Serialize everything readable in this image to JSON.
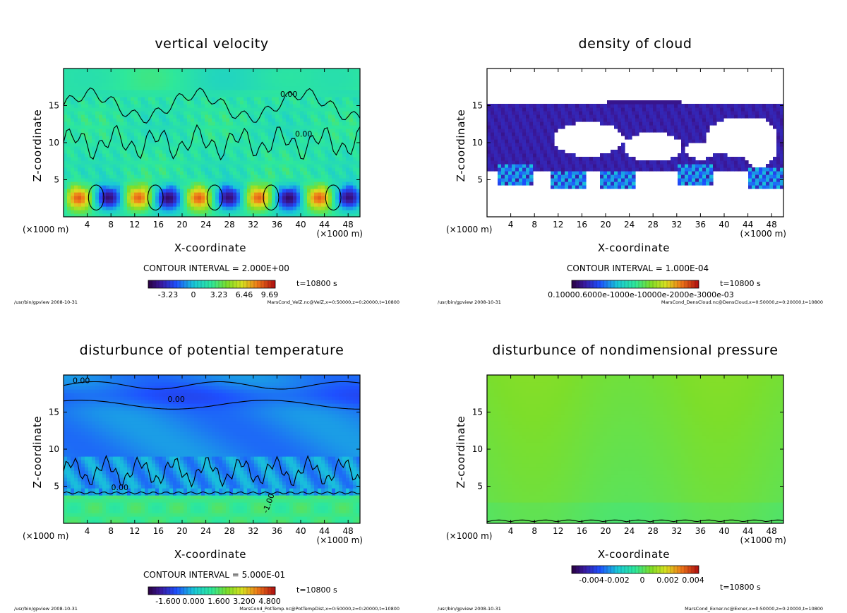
{
  "chart_data": [
    {
      "type": "heatmap",
      "title": "vertical velocity",
      "xlabel": "X-coordinate",
      "ylabel": "Z-coordinate",
      "x_unit": "(×1000 m)",
      "xlim": [
        0,
        50
      ],
      "ylim": [
        0,
        20
      ],
      "xticks": [
        4,
        8,
        12,
        16,
        20,
        24,
        28,
        32,
        36,
        40,
        44,
        48
      ],
      "yticks": [
        5,
        10,
        15
      ],
      "contour_interval": "CONTOUR INTERVAL = 2.000E+00",
      "contour_labels": [
        "0.00",
        "0.00"
      ],
      "colorbar_ticks": [
        "-3.23",
        "0",
        "3.23",
        "6.46",
        "9.69"
      ],
      "time_label": "t=10800 s",
      "footer_left": "/usr/bin/gpview  2008-10-31",
      "footer_right": "MarsCond_VelZ.nc@VelZ,x=0:50000,z=0:20000,t=10800",
      "colormap": "rainbow",
      "field": "velz"
    },
    {
      "type": "heatmap",
      "title": "density of cloud",
      "xlabel": "X-coordinate",
      "ylabel": "Z-coordinate",
      "x_unit": "(×1000 m)",
      "xlim": [
        0,
        50
      ],
      "ylim": [
        0,
        20
      ],
      "xticks": [
        4,
        8,
        12,
        16,
        20,
        24,
        28,
        32,
        36,
        40,
        44,
        48
      ],
      "yticks": [
        5,
        10,
        15
      ],
      "contour_interval": "CONTOUR INTERVAL = 1.000E-04",
      "contour_labels": [],
      "colorbar_ticks": [
        "0.10000.6000e-1000e-10000e-2000e-3000e-03"
      ],
      "time_label": "t=10800 s",
      "footer_left": "/usr/bin/gpview  2008-10-31",
      "footer_right": "MarsCond_DensCloud.nc@DensCloud,x=0:50000,z=0:20000,t=10800",
      "colormap": "rainbow",
      "field": "cloud"
    },
    {
      "type": "heatmap",
      "title": "disturbunce of potential temperature",
      "xlabel": "X-coordinate",
      "ylabel": "Z-coordinate",
      "x_unit": "(×1000 m)",
      "xlim": [
        0,
        50
      ],
      "ylim": [
        0,
        20
      ],
      "xticks": [
        4,
        8,
        12,
        16,
        20,
        24,
        28,
        32,
        36,
        40,
        44,
        48
      ],
      "yticks": [
        5,
        10,
        15
      ],
      "contour_interval": "CONTOUR INTERVAL = 5.000E-01",
      "contour_labels": [
        "0.00",
        "0.00",
        "0.00",
        "-1.00"
      ],
      "colorbar_ticks": [
        "-1.600",
        "0.000",
        "1.600",
        "3.200",
        "4.800"
      ],
      "time_label": "t=10800 s",
      "footer_left": "/usr/bin/gpview  2008-10-31",
      "footer_right": "MarsCond_PotTemp.nc@PotTempDist,x=0:50000,z=0:20000,t=10800",
      "colormap": "rainbow",
      "field": "ptemp"
    },
    {
      "type": "heatmap",
      "title": "disturbunce of nondimensional pressure",
      "xlabel": "X-coordinate",
      "ylabel": "Z-coordinate",
      "x_unit": "(×1000 m)",
      "xlim": [
        0,
        50
      ],
      "ylim": [
        0,
        20
      ],
      "xticks": [
        4,
        8,
        12,
        16,
        20,
        24,
        28,
        32,
        36,
        40,
        44,
        48
      ],
      "yticks": [
        5,
        10,
        15
      ],
      "contour_interval": "",
      "contour_labels": [],
      "colorbar_ticks": [
        "-0.004",
        "-0.002",
        "0",
        "0.002",
        "0.004"
      ],
      "time_label": "t=10800 s",
      "footer_left": "/usr/bin/gpview  2008-10-31",
      "footer_right": "MarsCond_Exner.nc@Exner,x=0:50000,z=0:20000,t=10800",
      "colormap": "rainbow",
      "field": "exner"
    }
  ]
}
